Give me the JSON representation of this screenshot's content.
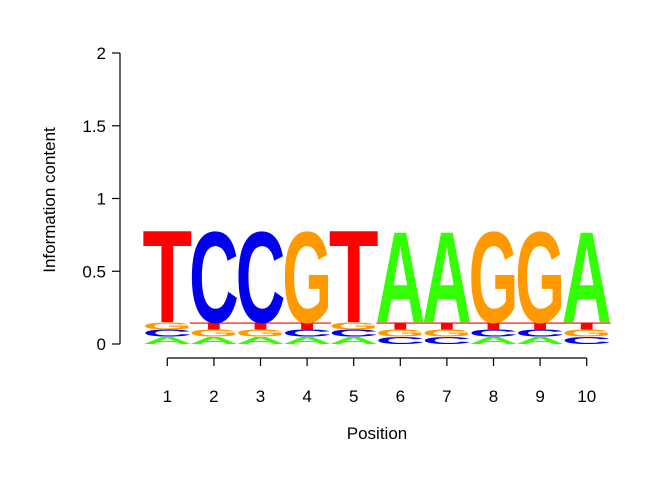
{
  "chart_data": {
    "type": "sequence-logo",
    "title": "",
    "xlabel": "Position",
    "ylabel": "Information content",
    "ylim": [
      0,
      2
    ],
    "yticks": [
      {
        "value": 0,
        "label": "0"
      },
      {
        "value": 0.5,
        "label": "0.5"
      },
      {
        "value": 1,
        "label": "1"
      },
      {
        "value": 1.5,
        "label": "1.5"
      },
      {
        "value": 2,
        "label": "2"
      }
    ],
    "colors": {
      "A": "#33ff00",
      "C": "#0000ee",
      "G": "#ff9900",
      "T": "#ff0000"
    },
    "positions": [
      {
        "x": "1",
        "stack": [
          {
            "letter": "A",
            "height": 0.05
          },
          {
            "letter": "C",
            "height": 0.05
          },
          {
            "letter": "G",
            "height": 0.05
          },
          {
            "letter": "T",
            "height": 0.65
          }
        ]
      },
      {
        "x": "2",
        "stack": [
          {
            "letter": "A",
            "height": 0.05
          },
          {
            "letter": "G",
            "height": 0.05
          },
          {
            "letter": "T",
            "height": 0.05
          },
          {
            "letter": "C",
            "height": 0.64
          }
        ]
      },
      {
        "x": "3",
        "stack": [
          {
            "letter": "A",
            "height": 0.05
          },
          {
            "letter": "G",
            "height": 0.05
          },
          {
            "letter": "T",
            "height": 0.05
          },
          {
            "letter": "C",
            "height": 0.64
          }
        ]
      },
      {
        "x": "4",
        "stack": [
          {
            "letter": "A",
            "height": 0.05
          },
          {
            "letter": "C",
            "height": 0.05
          },
          {
            "letter": "T",
            "height": 0.05
          },
          {
            "letter": "G",
            "height": 0.64
          }
        ]
      },
      {
        "x": "5",
        "stack": [
          {
            "letter": "A",
            "height": 0.05
          },
          {
            "letter": "C",
            "height": 0.05
          },
          {
            "letter": "G",
            "height": 0.05
          },
          {
            "letter": "T",
            "height": 0.65
          }
        ]
      },
      {
        "x": "6",
        "stack": [
          {
            "letter": "C",
            "height": 0.05
          },
          {
            "letter": "G",
            "height": 0.05
          },
          {
            "letter": "T",
            "height": 0.05
          },
          {
            "letter": "A",
            "height": 0.64
          }
        ]
      },
      {
        "x": "7",
        "stack": [
          {
            "letter": "C",
            "height": 0.05
          },
          {
            "letter": "G",
            "height": 0.05
          },
          {
            "letter": "T",
            "height": 0.05
          },
          {
            "letter": "A",
            "height": 0.64
          }
        ]
      },
      {
        "x": "8",
        "stack": [
          {
            "letter": "A",
            "height": 0.05
          },
          {
            "letter": "C",
            "height": 0.05
          },
          {
            "letter": "T",
            "height": 0.05
          },
          {
            "letter": "G",
            "height": 0.64
          }
        ]
      },
      {
        "x": "9",
        "stack": [
          {
            "letter": "A",
            "height": 0.05
          },
          {
            "letter": "C",
            "height": 0.05
          },
          {
            "letter": "T",
            "height": 0.05
          },
          {
            "letter": "G",
            "height": 0.64
          }
        ]
      },
      {
        "x": "10",
        "stack": [
          {
            "letter": "C",
            "height": 0.05
          },
          {
            "letter": "G",
            "height": 0.05
          },
          {
            "letter": "T",
            "height": 0.05
          },
          {
            "letter": "A",
            "height": 0.64
          }
        ]
      }
    ]
  }
}
